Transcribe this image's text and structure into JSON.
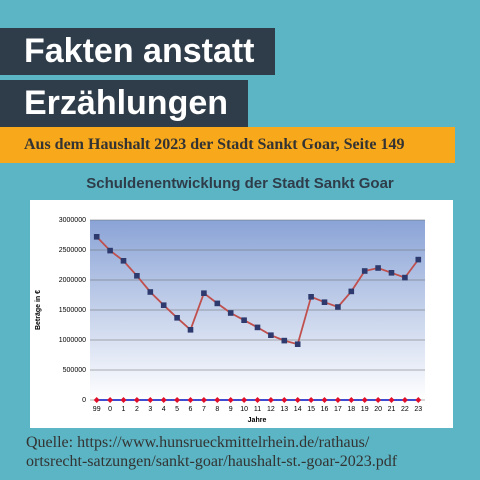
{
  "header": {
    "title_lines": [
      "Fakten anstatt",
      "Erzählungen"
    ],
    "subtitle": "Aus dem Haushalt 2023 der Stadt Sankt Goar, Seite 149",
    "source_lines": [
      "Quelle: https://www.hunsrueckmittelrhein.de/rathaus/",
      "ortsrecht-satzungen/sankt-goar/haushalt-st.-goar-2023.pdf"
    ]
  },
  "chart_data": {
    "type": "line",
    "title": "Schuldenentwicklung der Stadt Sankt Goar",
    "x_label": "Jahre",
    "y_label": "Beträge in €",
    "categories": [
      "99",
      "0",
      "1",
      "2",
      "3",
      "4",
      "5",
      "6",
      "7",
      "8",
      "9",
      "10",
      "11",
      "12",
      "13",
      "14",
      "15",
      "16",
      "17",
      "18",
      "19",
      "20",
      "21",
      "22",
      "23"
    ],
    "series": [
      {
        "color": "#c0504d",
        "marker_color": "#2e3a6e",
        "values": [
          2720000,
          2490000,
          2320000,
          2070000,
          1800000,
          1580000,
          1370000,
          1170000,
          1780000,
          1610000,
          1450000,
          1330000,
          1210000,
          1080000,
          990000,
          930000,
          1720000,
          1630000,
          1550000,
          1810000,
          2150000,
          2200000,
          2120000,
          2040000,
          2340000
        ]
      },
      {
        "color": "#2233cc",
        "marker_color": "#e0102a",
        "values": [
          0,
          0,
          0,
          0,
          0,
          0,
          0,
          0,
          0,
          0,
          0,
          0,
          0,
          0,
          0,
          0,
          0,
          0,
          0,
          0,
          0,
          0,
          0,
          0,
          0
        ]
      }
    ],
    "ylim": [
      0,
      3000000
    ],
    "yticks": [
      0,
      500000,
      1000000,
      1500000,
      2000000,
      2500000,
      3000000
    ],
    "grid": true
  }
}
